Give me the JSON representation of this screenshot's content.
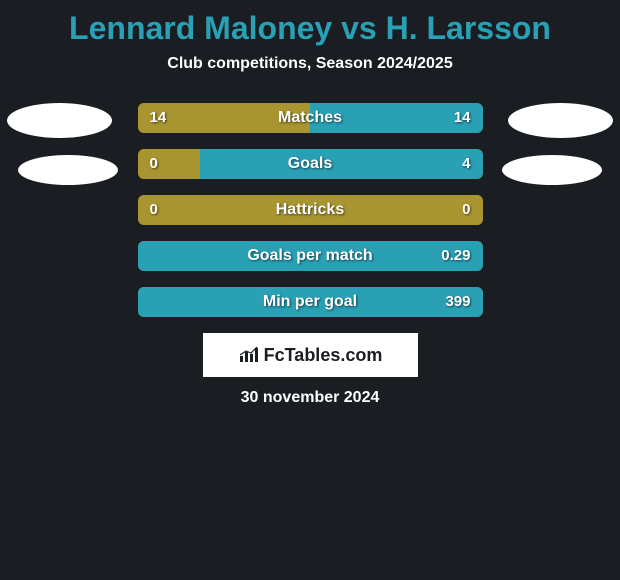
{
  "background_color": "#1a1d21",
  "accent_color": "#2aa0b5",
  "text_color": "#ffffff",
  "title": "Lennard Maloney vs H. Larsson",
  "subtitle": "Club competitions, Season 2024/2025",
  "date": "30 november 2024",
  "logo_label": "FcTables.com",
  "olive_color": "#a89530",
  "teal_color": "#2aa0b5",
  "placeholder_color": "#ffffff",
  "stats": [
    {
      "label": "Matches",
      "left_value": "14",
      "right_value": "14",
      "left_pct": 50,
      "right_pct": 50,
      "left_color": "#a89530",
      "right_color": "#2aa0b5"
    },
    {
      "label": "Goals",
      "left_value": "0",
      "right_value": "4",
      "left_pct": 18,
      "right_pct": 82,
      "left_color": "#a89530",
      "right_color": "#2aa0b5"
    },
    {
      "label": "Hattricks",
      "left_value": "0",
      "right_value": "0",
      "left_pct": 100,
      "right_pct": 0,
      "left_color": "#a89530",
      "right_color": "#2aa0b5"
    },
    {
      "label": "Goals per match",
      "left_value": "",
      "right_value": "0.29",
      "left_pct": 0,
      "right_pct": 100,
      "left_color": "#a89530",
      "right_color": "#2aa0b5"
    },
    {
      "label": "Min per goal",
      "left_value": "",
      "right_value": "399",
      "left_pct": 0,
      "right_pct": 100,
      "left_color": "#a89530",
      "right_color": "#2aa0b5"
    }
  ]
}
